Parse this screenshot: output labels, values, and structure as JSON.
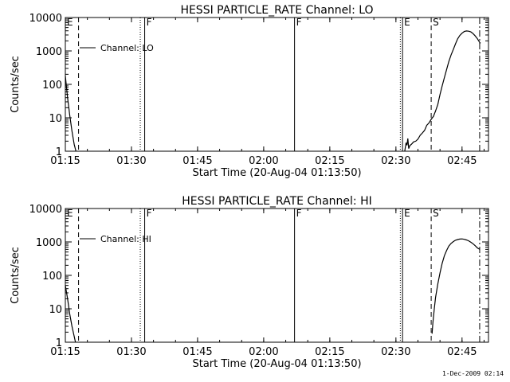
{
  "footer": {
    "timestamp": "1-Dec-2009 02:14"
  },
  "chart_data": [
    {
      "type": "line",
      "title": "HESSI PARTICLE_RATE Channel: LO",
      "xlabel": "Start Time (20-Aug-04 01:13:50)",
      "ylabel": "Counts/sec",
      "yscale": "log",
      "xlim": [
        "01:15",
        "02:51"
      ],
      "ylim": [
        1,
        10000
      ],
      "xticks": [
        "01:15",
        "01:30",
        "01:45",
        "02:00",
        "02:15",
        "02:30",
        "02:45"
      ],
      "yticks": [
        "1",
        "10",
        "100",
        "1000",
        "10000"
      ],
      "grid": false,
      "legend": {
        "label": "Channel: LO",
        "position": "top-left"
      },
      "markers": [
        {
          "label": "E",
          "time": "01:15",
          "style": "solid"
        },
        {
          "label": "",
          "time": "01:18",
          "style": "dashed"
        },
        {
          "label": "",
          "time": "01:32",
          "style": "dotted"
        },
        {
          "label": "F",
          "time": "01:33",
          "style": "solid"
        },
        {
          "label": "F",
          "time": "02:07",
          "style": "solid"
        },
        {
          "label": "",
          "time": "02:31",
          "style": "dotted"
        },
        {
          "label": "E",
          "time": "02:31.5",
          "style": "solid"
        },
        {
          "label": "S",
          "time": "02:38",
          "style": "dashed"
        },
        {
          "label": "",
          "time": "02:49",
          "style": "dashdot"
        }
      ],
      "series": [
        {
          "segments": [
            [
              [
                0.0,
                180
              ],
              [
                0.5,
                40
              ],
              [
                1.0,
                12
              ],
              [
                1.5,
                4
              ],
              [
                2.0,
                1.6
              ],
              [
                2.4,
                1
              ]
            ],
            [
              [
                77.0,
                1
              ],
              [
                77.3,
                1.8
              ],
              [
                77.5,
                1.5
              ],
              [
                77.7,
                2.4
              ],
              [
                77.9,
                1.2
              ],
              [
                78.2,
                1.5
              ],
              [
                78.5,
                1.6
              ],
              [
                79.0,
                1.9
              ],
              [
                79.5,
                2.0
              ],
              [
                80.0,
                2.3
              ],
              [
                80.5,
                3.0
              ],
              [
                81.0,
                3.5
              ],
              [
                81.5,
                4.2
              ],
              [
                82.0,
                6
              ],
              [
                82.5,
                7
              ],
              [
                83.0,
                9
              ],
              [
                83.5,
                11
              ],
              [
                84.0,
                16
              ],
              [
                84.5,
                25
              ],
              [
                85.0,
                50
              ],
              [
                85.5,
                90
              ],
              [
                86.0,
                160
              ],
              [
                86.5,
                280
              ],
              [
                87.0,
                480
              ],
              [
                87.5,
                750
              ],
              [
                88.0,
                1100
              ],
              [
                88.5,
                1600
              ],
              [
                89.0,
                2300
              ],
              [
                89.5,
                2900
              ],
              [
                90.0,
                3400
              ],
              [
                90.5,
                3800
              ],
              [
                91.0,
                3950
              ],
              [
                91.5,
                3900
              ],
              [
                92.0,
                3700
              ],
              [
                92.5,
                3300
              ],
              [
                93.0,
                2800
              ],
              [
                93.5,
                2300
              ],
              [
                94.0,
                1800
              ],
              [
                94.2,
                1700
              ]
            ]
          ]
        }
      ]
    },
    {
      "type": "line",
      "title": "HESSI PARTICLE_RATE Channel: HI",
      "xlabel": "Start Time (20-Aug-04 01:13:50)",
      "ylabel": "Counts/sec",
      "yscale": "log",
      "xlim": [
        "01:15",
        "02:51"
      ],
      "ylim": [
        1,
        10000
      ],
      "xticks": [
        "01:15",
        "01:30",
        "01:45",
        "02:00",
        "02:15",
        "02:30",
        "02:45"
      ],
      "yticks": [
        "1",
        "10",
        "100",
        "1000",
        "10000"
      ],
      "grid": false,
      "legend": {
        "label": "Channel: HI",
        "position": "top-left"
      },
      "markers": [
        {
          "label": "E",
          "time": "01:15",
          "style": "solid"
        },
        {
          "label": "",
          "time": "01:18",
          "style": "dashed"
        },
        {
          "label": "",
          "time": "01:32",
          "style": "dotted"
        },
        {
          "label": "F",
          "time": "01:33",
          "style": "solid"
        },
        {
          "label": "F",
          "time": "02:07",
          "style": "solid"
        },
        {
          "label": "",
          "time": "02:31",
          "style": "dotted"
        },
        {
          "label": "E",
          "time": "02:31.5",
          "style": "solid"
        },
        {
          "label": "S",
          "time": "02:38",
          "style": "dashed"
        },
        {
          "label": "",
          "time": "02:49",
          "style": "dashdot"
        }
      ],
      "series": [
        {
          "segments": [
            [
              [
                0.0,
                50
              ],
              [
                0.5,
                20
              ],
              [
                1.0,
                7
              ],
              [
                1.5,
                3
              ],
              [
                2.0,
                1.5
              ],
              [
                2.3,
                1
              ]
            ],
            [
              [
                83.2,
                1.8
              ],
              [
                83.4,
                4
              ],
              [
                83.7,
                10
              ],
              [
                84.0,
                22
              ],
              [
                84.5,
                55
              ],
              [
                85.0,
                120
              ],
              [
                85.5,
                230
              ],
              [
                86.0,
                390
              ],
              [
                86.5,
                560
              ],
              [
                87.0,
                750
              ],
              [
                87.5,
                900
              ],
              [
                88.0,
                1020
              ],
              [
                88.5,
                1120
              ],
              [
                89.0,
                1180
              ],
              [
                89.5,
                1220
              ],
              [
                90.0,
                1230
              ],
              [
                90.5,
                1200
              ],
              [
                91.0,
                1150
              ],
              [
                91.5,
                1080
              ],
              [
                92.0,
                980
              ],
              [
                92.5,
                880
              ],
              [
                93.0,
                770
              ],
              [
                93.5,
                660
              ],
              [
                94.0,
                600
              ]
            ]
          ]
        }
      ]
    }
  ]
}
